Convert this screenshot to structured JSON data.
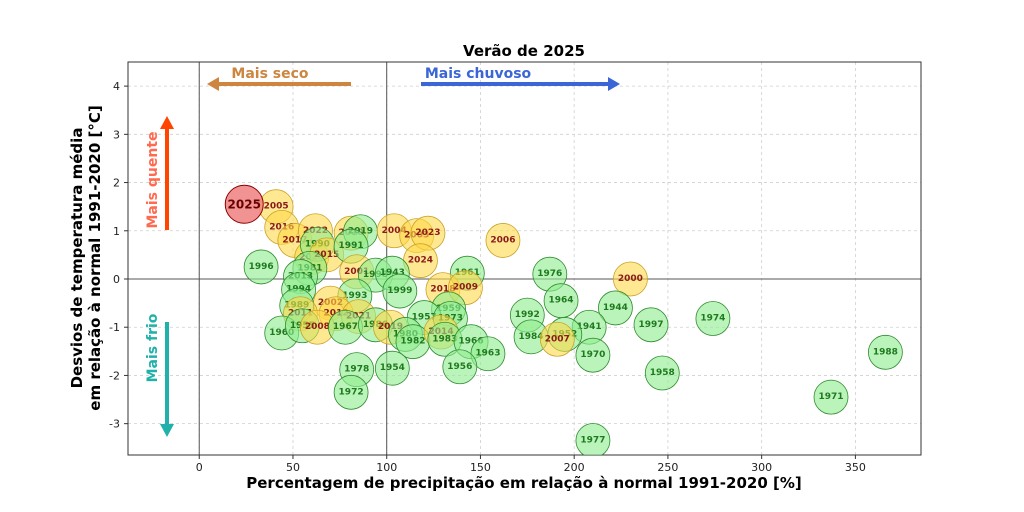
{
  "chart_data": {
    "type": "scatter",
    "title": "Verão de  2025",
    "xlabel": "Percentagem de precipitação em relação à normal 1991-2020 [%]",
    "ylabel_line1": "Desvios de temperatura média",
    "ylabel_line2": "em relação à normal 1991-2020 [°C]",
    "xlim": [
      -38,
      385
    ],
    "ylim": [
      -3.65,
      4.5
    ],
    "xticks": [
      0,
      50,
      100,
      150,
      200,
      250,
      300,
      350
    ],
    "yticks": [
      -3,
      -2,
      -1,
      0,
      1,
      2,
      3,
      4
    ],
    "grid": true,
    "reference_lines": {
      "x": [
        0,
        100
      ],
      "y": [
        0
      ]
    },
    "annotations": {
      "drier": "Mais seco",
      "wetter": "Mais chuvoso",
      "warmer": "Mais quente",
      "colder": "Mais frio"
    },
    "colors": {
      "drier": "#cd853f",
      "wetter": "#3a66d6",
      "warmer": "#ff4500",
      "colder": "#20b2aa",
      "cold_fill": "#90ee90",
      "cold_edge": "#2e8b2e",
      "cold_text": "#1f7a1f",
      "warm_fill": "#ffd84a",
      "warm_edge": "#c9a227",
      "warm_text": "#8b1a1a",
      "current_fill": "#f08080",
      "current_edge": "#8b0000",
      "current_text": "#6b0000"
    },
    "highlight": {
      "year": "2025",
      "x": 24,
      "y": 1.55
    },
    "points": [
      {
        "year": "2005",
        "x": 41,
        "y": 1.5,
        "g": "w"
      },
      {
        "year": "2016",
        "x": 44,
        "y": 1.07,
        "g": "w"
      },
      {
        "year": "2017",
        "x": 51,
        "y": 0.8,
        "g": "w"
      },
      {
        "year": "2022",
        "x": 62,
        "y": 1.0,
        "g": "w"
      },
      {
        "year": "2020",
        "x": 60,
        "y": 0.45,
        "g": "w"
      },
      {
        "year": "1990",
        "x": 63,
        "y": 0.72,
        "g": "g"
      },
      {
        "year": "2015",
        "x": 68,
        "y": 0.5,
        "g": "w"
      },
      {
        "year": "1981",
        "x": 59,
        "y": 0.22,
        "g": "g"
      },
      {
        "year": "2010",
        "x": 81,
        "y": 0.95,
        "g": "w"
      },
      {
        "year": "2019",
        "x": 86,
        "y": 0.98,
        "g": "g"
      },
      {
        "year": "1991",
        "x": 81,
        "y": 0.68,
        "g": "g"
      },
      {
        "year": "2004",
        "x": 104,
        "y": 1.0,
        "g": "w"
      },
      {
        "year": "2003",
        "x": 116,
        "y": 0.9,
        "g": "w"
      },
      {
        "year": "2023",
        "x": 122,
        "y": 0.95,
        "g": "w"
      },
      {
        "year": "2024",
        "x": 118,
        "y": 0.38,
        "g": "w"
      },
      {
        "year": "2006",
        "x": 162,
        "y": 0.8,
        "g": "w"
      },
      {
        "year": "1996",
        "x": 33,
        "y": 0.25,
        "g": "g"
      },
      {
        "year": "2013",
        "x": 54,
        "y": 0.05,
        "g": "g"
      },
      {
        "year": "1994",
        "x": 53,
        "y": -0.22,
        "g": "g"
      },
      {
        "year": "2001",
        "x": 84,
        "y": 0.15,
        "g": "w"
      },
      {
        "year": "1998",
        "x": 94,
        "y": 0.08,
        "g": "g"
      },
      {
        "year": "1943",
        "x": 103,
        "y": 0.12,
        "g": "g"
      },
      {
        "year": "1999",
        "x": 107,
        "y": -0.25,
        "g": "g"
      },
      {
        "year": "1961",
        "x": 143,
        "y": 0.12,
        "g": "g"
      },
      {
        "year": "2018",
        "x": 130,
        "y": -0.22,
        "g": "w"
      },
      {
        "year": "2009",
        "x": 142,
        "y": -0.18,
        "g": "w"
      },
      {
        "year": "1976",
        "x": 187,
        "y": 0.1,
        "g": "g"
      },
      {
        "year": "2000",
        "x": 230,
        "y": 0.0,
        "g": "w"
      },
      {
        "year": "1993",
        "x": 83,
        "y": -0.35,
        "g": "g"
      },
      {
        "year": "2002",
        "x": 70,
        "y": -0.5,
        "g": "w"
      },
      {
        "year": "1989",
        "x": 52,
        "y": -0.55,
        "g": "g"
      },
      {
        "year": "2011",
        "x": 54,
        "y": -0.72,
        "g": "w"
      },
      {
        "year": "2012",
        "x": 73,
        "y": -0.72,
        "g": "w"
      },
      {
        "year": "2021",
        "x": 85,
        "y": -0.78,
        "g": "w"
      },
      {
        "year": "1959",
        "x": 133,
        "y": -0.62,
        "g": "g"
      },
      {
        "year": "1957",
        "x": 120,
        "y": -0.8,
        "g": "g"
      },
      {
        "year": "1973",
        "x": 134,
        "y": -0.82,
        "g": "g"
      },
      {
        "year": "1964",
        "x": 193,
        "y": -0.45,
        "g": "g"
      },
      {
        "year": "1944",
        "x": 222,
        "y": -0.6,
        "g": "g"
      },
      {
        "year": "1992",
        "x": 175,
        "y": -0.75,
        "g": "g"
      },
      {
        "year": "1974",
        "x": 274,
        "y": -0.82,
        "g": "g"
      },
      {
        "year": "1997",
        "x": 241,
        "y": -0.95,
        "g": "g"
      },
      {
        "year": "1941",
        "x": 208,
        "y": -1.0,
        "g": "g"
      },
      {
        "year": "1984",
        "x": 177,
        "y": -1.2,
        "g": "g"
      },
      {
        "year": "1952",
        "x": 195,
        "y": -1.15,
        "g": "g"
      },
      {
        "year": "2007",
        "x": 191,
        "y": -1.25,
        "g": "w"
      },
      {
        "year": "1960",
        "x": 44,
        "y": -1.12,
        "g": "g"
      },
      {
        "year": "1955",
        "x": 55,
        "y": -0.97,
        "g": "g"
      },
      {
        "year": "2008",
        "x": 63,
        "y": -1.0,
        "g": "w"
      },
      {
        "year": "1967",
        "x": 78,
        "y": -1.0,
        "g": "g"
      },
      {
        "year": "1986",
        "x": 94,
        "y": -0.95,
        "g": "g"
      },
      {
        "year": "2019",
        "x": 102,
        "y": -1.0,
        "g": "w"
      },
      {
        "year": "1980",
        "x": 110,
        "y": -1.15,
        "g": "g"
      },
      {
        "year": "1982",
        "x": 114,
        "y": -1.3,
        "g": "g"
      },
      {
        "year": "2014",
        "x": 129,
        "y": -1.1,
        "g": "w"
      },
      {
        "year": "1983",
        "x": 131,
        "y": -1.25,
        "g": "g"
      },
      {
        "year": "1966",
        "x": 145,
        "y": -1.3,
        "g": "g"
      },
      {
        "year": "1963",
        "x": 154,
        "y": -1.55,
        "g": "g"
      },
      {
        "year": "1956",
        "x": 139,
        "y": -1.82,
        "g": "g"
      },
      {
        "year": "1970",
        "x": 210,
        "y": -1.58,
        "g": "g"
      },
      {
        "year": "1958",
        "x": 247,
        "y": -1.95,
        "g": "g"
      },
      {
        "year": "1978",
        "x": 84,
        "y": -1.88,
        "g": "g"
      },
      {
        "year": "1954",
        "x": 103,
        "y": -1.85,
        "g": "g"
      },
      {
        "year": "1972",
        "x": 81,
        "y": -2.35,
        "g": "g"
      },
      {
        "year": "1971",
        "x": 337,
        "y": -2.45,
        "g": "g"
      },
      {
        "year": "1988",
        "x": 366,
        "y": -1.52,
        "g": "g"
      },
      {
        "year": "1977",
        "x": 210,
        "y": -3.35,
        "g": "g"
      }
    ]
  }
}
